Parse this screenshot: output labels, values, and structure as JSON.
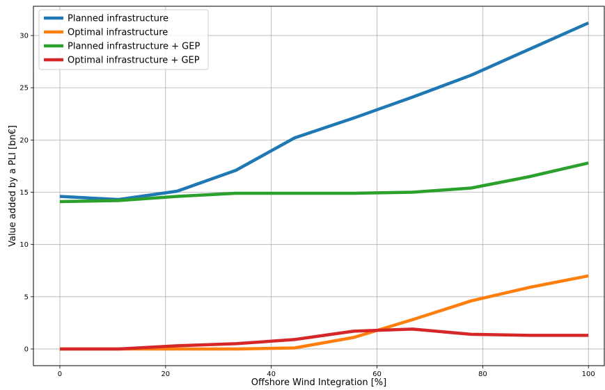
{
  "chart_data": {
    "type": "line",
    "xlabel": "Offshore Wind Integration [%]",
    "ylabel": "Value added by a PLI [bn€]",
    "xlim": [
      -5,
      103
    ],
    "ylim": [
      -1.6,
      32.8
    ],
    "xticks": [
      0,
      20,
      40,
      60,
      80,
      100
    ],
    "yticks": [
      0,
      5,
      10,
      15,
      20,
      25,
      30
    ],
    "grid": true,
    "legend_position": "top-left",
    "x": [
      0,
      11.1,
      22.2,
      33.3,
      44.4,
      55.6,
      66.7,
      77.8,
      88.9,
      100
    ],
    "series": [
      {
        "name": "Planned infrastructure",
        "color": "#1f77b4",
        "values": [
          14.6,
          14.3,
          15.1,
          17.1,
          20.2,
          22.1,
          24.1,
          26.2,
          28.7,
          31.2
        ]
      },
      {
        "name": "Optimal infrastructure",
        "color": "#ff7f0e",
        "values": [
          0.0,
          0.0,
          0.0,
          0.0,
          0.1,
          1.1,
          2.8,
          4.6,
          5.9,
          7.0
        ]
      },
      {
        "name": "Planned infrastructure + GEP",
        "color": "#2ca02c",
        "values": [
          14.1,
          14.2,
          14.6,
          14.9,
          14.9,
          14.9,
          15.0,
          15.4,
          16.5,
          17.8
        ]
      },
      {
        "name": "Optimal infrastructure + GEP",
        "color": "#d62728",
        "values": [
          0.0,
          0.0,
          0.3,
          0.5,
          0.9,
          1.7,
          1.9,
          1.4,
          1.3,
          1.3
        ]
      }
    ]
  }
}
